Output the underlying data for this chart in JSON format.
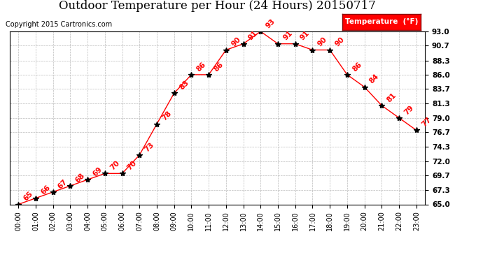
{
  "title": "Outdoor Temperature per Hour (24 Hours) 20150717",
  "copyright": "Copyright 2015 Cartronics.com",
  "legend_label": "Temperature  (°F)",
  "hours": [
    0,
    1,
    2,
    3,
    4,
    5,
    6,
    7,
    8,
    9,
    10,
    11,
    12,
    13,
    14,
    15,
    16,
    17,
    18,
    19,
    20,
    21,
    22,
    23
  ],
  "temps": [
    65,
    66,
    67,
    68,
    69,
    70,
    70,
    73,
    78,
    83,
    86,
    86,
    90,
    91,
    93,
    91,
    91,
    90,
    90,
    86,
    84,
    81,
    79,
    77
  ],
  "ylim": [
    65.0,
    93.0
  ],
  "yticks": [
    65.0,
    67.3,
    69.7,
    72.0,
    74.3,
    76.7,
    79.0,
    81.3,
    83.7,
    86.0,
    88.3,
    90.7,
    93.0
  ],
  "line_color": "red",
  "marker_color": "black",
  "annotation_color": "red",
  "bg_color": "white",
  "grid_color": "#bbbbbb",
  "title_fontsize": 12,
  "copyright_fontsize": 7,
  "annotation_fontsize": 7.5,
  "legend_bg": "red",
  "legend_text_color": "white"
}
